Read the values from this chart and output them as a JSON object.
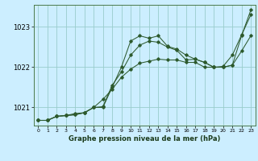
{
  "title": "Graphe pression niveau de la mer (hPa)",
  "bg_color": "#cceeff",
  "grid_color": "#99cccc",
  "line_color": "#2d5a2d",
  "x_ticks": [
    0,
    1,
    2,
    3,
    4,
    5,
    6,
    7,
    8,
    9,
    10,
    11,
    12,
    13,
    14,
    15,
    16,
    17,
    18,
    19,
    20,
    21,
    22,
    23
  ],
  "y_ticks": [
    1021,
    1022,
    1023
  ],
  "ylim": [
    1020.55,
    1023.55
  ],
  "xlim": [
    -0.5,
    23.5
  ],
  "series1_y": [
    1020.68,
    1020.68,
    1020.78,
    1020.8,
    1020.82,
    1020.87,
    1021.0,
    1021.2,
    1021.45,
    1021.75,
    1021.95,
    1022.1,
    1022.15,
    1022.2,
    1022.18,
    1022.18,
    1022.12,
    1022.12,
    1022.0,
    1022.0,
    1022.02,
    1022.3,
    1022.8,
    1023.3
  ],
  "series2_y": [
    1020.68,
    1020.68,
    1020.78,
    1020.8,
    1020.82,
    1020.87,
    1021.0,
    1021.0,
    1021.5,
    1022.0,
    1022.65,
    1022.78,
    1022.72,
    1022.78,
    1022.52,
    1022.45,
    1022.3,
    1022.2,
    1022.12,
    1022.0,
    1022.0,
    1022.05,
    1022.4,
    1022.78
  ],
  "series3_y": [
    1020.68,
    1020.68,
    1020.78,
    1020.8,
    1020.85,
    1020.87,
    1021.0,
    1021.02,
    1021.55,
    1021.88,
    1022.3,
    1022.55,
    1022.65,
    1022.62,
    1022.5,
    1022.42,
    1022.18,
    1022.2,
    1022.12,
    1022.0,
    1022.0,
    1022.05,
    1022.78,
    1023.42
  ]
}
